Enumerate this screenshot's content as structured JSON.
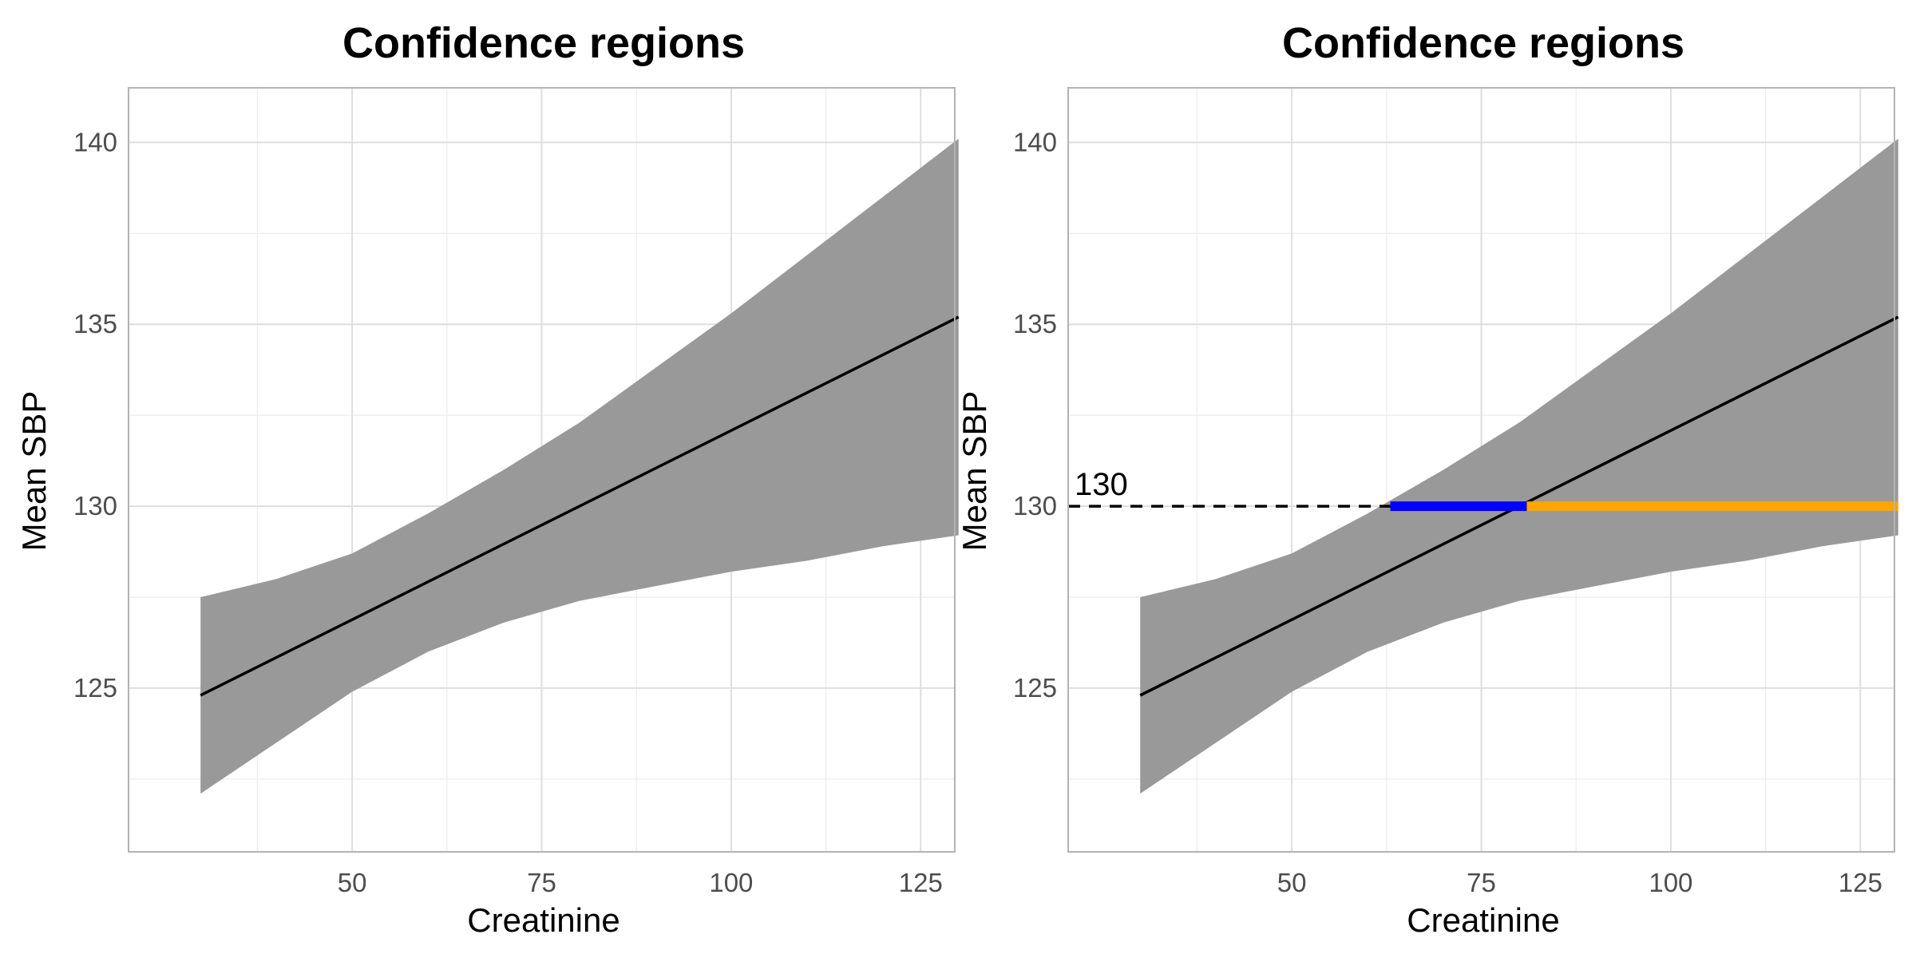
{
  "chart_data": [
    {
      "type": "line",
      "title": "Confidence regions",
      "xlabel": "Creatinine",
      "ylabel": "Mean SBP",
      "xlim": [
        20.5,
        129.5
      ],
      "ylim": [
        120.5,
        141.5
      ],
      "x_ticks": [
        50,
        75,
        100,
        125
      ],
      "y_ticks": [
        125,
        130,
        135,
        140
      ],
      "grid": true,
      "series": [
        {
          "name": "mean",
          "x": [
            30,
            130
          ],
          "y": [
            124.8,
            135.2
          ],
          "color": "#000000"
        }
      ],
      "band": {
        "x": [
          30,
          40,
          50,
          60,
          70,
          80,
          90,
          100,
          110,
          120,
          130
        ],
        "lower": [
          122.1,
          123.5,
          124.9,
          126.0,
          126.8,
          127.4,
          127.8,
          128.2,
          128.5,
          128.9,
          129.2
        ],
        "upper": [
          127.5,
          128.0,
          128.7,
          129.8,
          131.0,
          132.3,
          133.8,
          135.3,
          136.9,
          138.5,
          140.1
        ],
        "color": "#999999"
      }
    },
    {
      "type": "line",
      "title": "Confidence regions",
      "xlabel": "Creatinine",
      "ylabel": "Mean SBP",
      "xlim": [
        20.5,
        129.5
      ],
      "ylim": [
        120.5,
        141.5
      ],
      "x_ticks": [
        50,
        75,
        100,
        125
      ],
      "y_ticks": [
        125,
        130,
        135,
        140
      ],
      "grid": true,
      "series": [
        {
          "name": "mean",
          "x": [
            30,
            130
          ],
          "y": [
            124.8,
            135.2
          ],
          "color": "#000000"
        }
      ],
      "band": {
        "x": [
          30,
          40,
          50,
          60,
          70,
          80,
          90,
          100,
          110,
          120,
          130
        ],
        "lower": [
          122.1,
          123.5,
          124.9,
          126.0,
          126.8,
          127.4,
          127.8,
          128.2,
          128.5,
          128.9,
          129.2
        ],
        "upper": [
          127.5,
          128.0,
          128.7,
          129.8,
          131.0,
          132.3,
          133.8,
          135.3,
          136.9,
          138.5,
          140.1
        ],
        "color": "#999999"
      },
      "threshold": {
        "y": 130,
        "label": "130",
        "style": "dashed"
      },
      "segments": [
        {
          "name": "blue-segment",
          "x": [
            63.0,
            81.0
          ],
          "y": 130,
          "color": "#0000ff"
        },
        {
          "name": "orange-segment",
          "x": [
            81.0,
            130.0
          ],
          "y": 130,
          "color": "#ffa500"
        }
      ]
    }
  ]
}
